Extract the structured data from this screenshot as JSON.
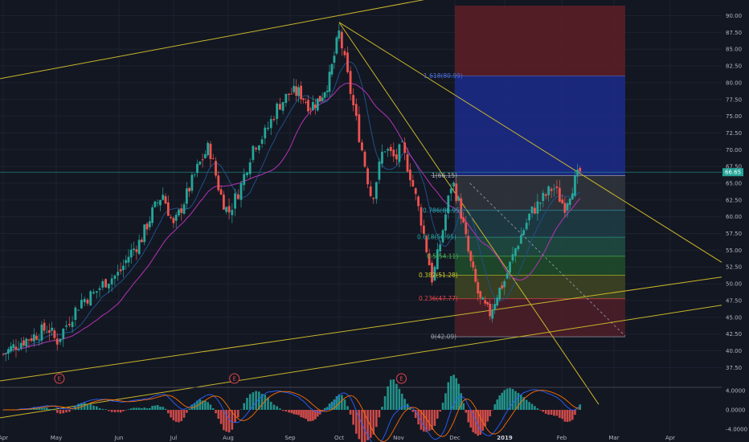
{
  "chart_data": {
    "type": "candlestick",
    "y_range": [
      35.5,
      91.5
    ],
    "x_months": [
      {
        "label": "Apr",
        "pos": 0
      },
      {
        "label": "May",
        "pos": 1
      },
      {
        "label": "Jun",
        "pos": 2
      },
      {
        "label": "Jul",
        "pos": 3
      },
      {
        "label": "Aug",
        "pos": 4
      },
      {
        "label": "Sep",
        "pos": 5
      },
      {
        "label": "Oct",
        "pos": 6
      },
      {
        "label": "Nov",
        "pos": 7
      },
      {
        "label": "Dec",
        "pos": 8
      },
      {
        "label": "2019",
        "pos": 9,
        "bold": true
      },
      {
        "label": "Feb",
        "pos": 10
      },
      {
        "label": "Mar",
        "pos": 11
      },
      {
        "label": "Apr",
        "pos": 12
      }
    ],
    "y_ticks": [
      "37.50",
      "40.00",
      "42.50",
      "45.00",
      "47.50",
      "50.00",
      "52.50",
      "55.00",
      "57.50",
      "60.00",
      "62.50",
      "65.00",
      "67.50",
      "70.00",
      "72.50",
      "75.00",
      "77.50",
      "80.00",
      "82.50",
      "85.00",
      "87.50",
      "90.00"
    ],
    "last_price": {
      "label": "66.65",
      "value": 66.65
    },
    "price_path": [
      [
        0,
        39.5
      ],
      [
        0.3,
        41.2
      ],
      [
        0.6,
        42.3
      ],
      [
        0.85,
        43.5
      ],
      [
        1.0,
        41.3
      ],
      [
        1.2,
        44.5
      ],
      [
        1.4,
        47.5
      ],
      [
        1.6,
        48.5
      ],
      [
        1.8,
        50.5
      ],
      [
        2.0,
        51.5
      ],
      [
        2.2,
        54.5
      ],
      [
        2.4,
        56.5
      ],
      [
        2.6,
        60.5
      ],
      [
        2.8,
        63.5
      ],
      [
        3.0,
        58.5
      ],
      [
        3.2,
        62.5
      ],
      [
        3.45,
        67.5
      ],
      [
        3.65,
        70.5
      ],
      [
        3.85,
        63.5
      ],
      [
        4.0,
        60.5
      ],
      [
        4.2,
        64.5
      ],
      [
        4.4,
        70.5
      ],
      [
        4.6,
        72.5
      ],
      [
        4.8,
        76.5
      ],
      [
        5.0,
        78.5
      ],
      [
        5.2,
        78.5
      ],
      [
        5.4,
        76.5
      ],
      [
        5.6,
        77.5
      ],
      [
        5.8,
        80.5
      ],
      [
        6.0,
        87.5
      ],
      [
        6.15,
        80.5
      ],
      [
        6.35,
        71.5
      ],
      [
        6.55,
        62.5
      ],
      [
        6.75,
        70.5
      ],
      [
        6.95,
        68.5
      ],
      [
        7.05,
        70.5
      ],
      [
        7.2,
        66.5
      ],
      [
        7.4,
        59.5
      ],
      [
        7.6,
        50.5
      ],
      [
        7.75,
        56.5
      ],
      [
        7.95,
        65.5
      ],
      [
        8.1,
        61.5
      ],
      [
        8.3,
        53.5
      ],
      [
        8.5,
        47.5
      ],
      [
        8.7,
        45.5
      ],
      [
        8.85,
        48.5
      ],
      [
        9.0,
        50.5
      ],
      [
        9.2,
        55.5
      ],
      [
        9.45,
        60.5
      ],
      [
        9.65,
        62.5
      ],
      [
        9.85,
        64.5
      ],
      [
        10.05,
        61.5
      ],
      [
        10.2,
        64.5
      ],
      [
        10.35,
        66.65
      ]
    ],
    "fib_levels": [
      {
        "label": "1(66.15)",
        "value": 66.15
      },
      {
        "label": "0.786(60.95)",
        "value": 60.95
      },
      {
        "label": "0.618(56.95)",
        "value": 56.95
      },
      {
        "label": "0.5(54.11)",
        "value": 54.11
      },
      {
        "label": "0.382(51.28)",
        "value": 51.28
      },
      {
        "label": "0.236(47.77)",
        "value": 47.77
      },
      {
        "label": "0(42.09)",
        "value": 42.09
      },
      {
        "label": "1.618(80.99)",
        "value": 80.99
      }
    ],
    "earnings_markers": [
      {
        "label": "E",
        "pos": 1.05
      },
      {
        "label": "E",
        "pos": 4.1
      },
      {
        "label": "E",
        "pos": 7.05
      }
    ],
    "macd_ticks": [
      "4.0000",
      "0.0000",
      "-4.0000"
    ],
    "colors": {
      "background": "#131722",
      "up": "#26a69a",
      "down": "#ef5350",
      "trendline": "#c9b52a",
      "ma_fast": "#1f4f8a",
      "ma_slow": "#b532b5",
      "macd": "#2962ff",
      "signal": "#ff6d00"
    }
  }
}
